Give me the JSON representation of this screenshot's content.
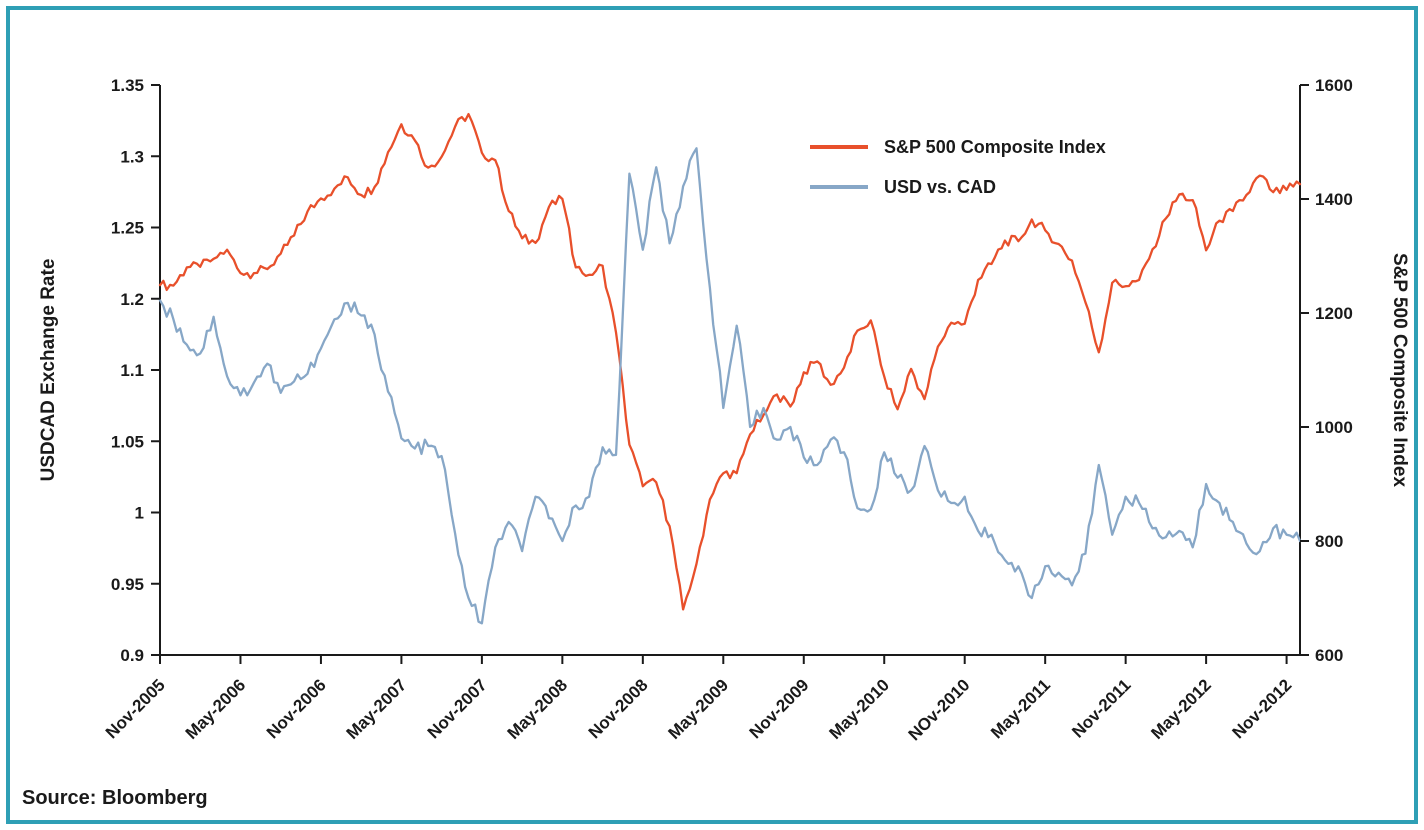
{
  "frame": {
    "border_color": "#2E9FB5",
    "background": "#FFFFFF"
  },
  "source_note": "Source: Bloomberg",
  "chart_data": {
    "type": "line",
    "title": "",
    "start_month": "Nov-2005",
    "interval": "monthly",
    "grid": "off",
    "legend_position": "inside-top-right",
    "left_axis": {
      "label": "USDCAD Exchange Rate",
      "min": 0.9,
      "max": 1.35,
      "tick_labels": [
        "1.35",
        "1.3",
        "1.25",
        "1.2",
        "1.1",
        "1.05",
        "1",
        "0.95",
        "0.9"
      ]
    },
    "right_axis": {
      "label": "S&P 500 Composite Index",
      "min": 600,
      "max": 1600,
      "tick_labels": [
        "1600",
        "1400",
        "1200",
        "1000",
        "800",
        "600"
      ]
    },
    "x_axis": {
      "months_per_tick": 6,
      "tick_labels": [
        "Nov-2005",
        "May-2006",
        "Nov-2006",
        "May-2007",
        "Nov-2007",
        "May-2008",
        "Nov-2008",
        "May-2009",
        "Nov-2009",
        "May-2010",
        "NOv-2010",
        "May-2011",
        "Nov-2011",
        "May-2012",
        "Nov-2012"
      ]
    },
    "series": [
      {
        "name": "S&P 500 Composite Index",
        "axis": "right",
        "color": "#E8502B",
        "values": [
          1249,
          1248,
          1280,
          1281,
          1295,
          1311,
          1270,
          1270,
          1277,
          1304,
          1336,
          1378,
          1401,
          1418,
          1438,
          1407,
          1421,
          1482,
          1531,
          1503,
          1455,
          1474,
          1527,
          1549,
          1481,
          1468,
          1379,
          1331,
          1323,
          1386,
          1400,
          1280,
          1267,
          1283,
          1166,
          969,
          896,
          903,
          826,
          680,
          760,
          873,
          919,
          919,
          987,
          1021,
          1057,
          1036,
          1096,
          1115,
          1074,
          1104,
          1169,
          1187,
          1089,
          1031,
          1102,
          1049,
          1141,
          1183,
          1181,
          1258,
          1286,
          1327,
          1326,
          1364,
          1345,
          1321,
          1292,
          1219,
          1131,
          1253,
          1247,
          1258,
          1312,
          1366,
          1408,
          1398,
          1310,
          1362,
          1379,
          1407,
          1441,
          1412,
          1416,
          1426
        ]
      },
      {
        "name": "USD vs. CAD",
        "axis": "left",
        "color": "#87A7C7",
        "values": [
          1.18,
          1.165,
          1.145,
          1.138,
          1.167,
          1.12,
          1.105,
          1.115,
          1.13,
          1.107,
          1.116,
          1.122,
          1.142,
          1.165,
          1.178,
          1.168,
          1.153,
          1.108,
          1.071,
          1.063,
          1.065,
          1.057,
          0.996,
          0.945,
          0.925,
          0.985,
          1.005,
          0.982,
          1.025,
          1.008,
          0.99,
          1.018,
          1.025,
          1.064,
          1.058,
          1.28,
          1.22,
          1.285,
          1.225,
          1.27,
          1.3,
          1.19,
          1.095,
          1.16,
          1.08,
          1.095,
          1.07,
          1.08,
          1.056,
          1.05,
          1.07,
          1.06,
          1.016,
          1.015,
          1.06,
          1.04,
          1.03,
          1.065,
          1.03,
          1.02,
          1.025,
          0.998,
          0.995,
          0.975,
          0.97,
          0.945,
          0.97,
          0.965,
          0.955,
          0.98,
          1.05,
          0.995,
          1.025,
          1.02,
          1.0,
          0.993,
          0.998,
          0.985,
          1.035,
          1.02,
          1.005,
          0.988,
          0.982,
          1.0,
          0.995,
          0.99
        ]
      }
    ]
  }
}
